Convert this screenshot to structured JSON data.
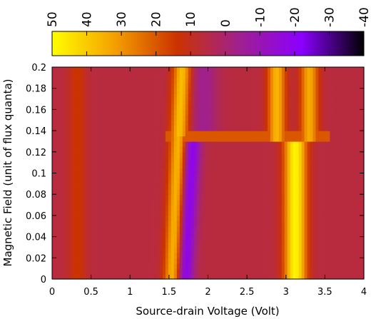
{
  "chart_data": {
    "type": "heatmap",
    "title": "",
    "xlabel": "Source-drain Voltage (Volt)",
    "ylabel": "Magnetic Field (unit of flux quanta)",
    "xlim": [
      0,
      4
    ],
    "ylim": [
      0,
      0.2
    ],
    "x_ticks": [
      "0",
      "0.5",
      "1",
      "1.5",
      "2",
      "2.5",
      "3",
      "3.5",
      "4"
    ],
    "y_ticks": [
      "0",
      "0.02",
      "0.04",
      "0.06",
      "0.08",
      "0.1",
      "0.12",
      "0.14",
      "0.16",
      "0.18",
      "0.2"
    ],
    "colorbar": {
      "range": [
        -40,
        50
      ],
      "placement": "top",
      "tick_labels": [
        "50",
        "40",
        "30",
        "20",
        "10",
        "0",
        "-10",
        "-20",
        "-30",
        "-40"
      ],
      "colors": [
        "#ffff00",
        "#f5a000",
        "#cc3300",
        "#a0208e",
        "#8b00ff",
        "#000000"
      ]
    },
    "background_value": 6,
    "features": [
      {
        "name": "peak-left-faint",
        "x_center": 0.32,
        "x_width": 0.08,
        "y_range": [
          0.0,
          0.2
        ],
        "value": 14
      },
      {
        "name": "peak-main-left",
        "x_center_at_ymin": 1.55,
        "x_center_at_ymax": 1.67,
        "x_width": 0.08,
        "y_range": [
          0.0,
          0.2
        ],
        "value": 38
      },
      {
        "name": "dip-main",
        "x_center_at_ymin": 1.7,
        "x_center_at_ymax": 1.8,
        "x_width": 0.08,
        "y_range": [
          0.0,
          0.135
        ],
        "value": -22
      },
      {
        "name": "dip-faint-upper",
        "x_center": 1.95,
        "x_width": 0.12,
        "y_range": [
          0.135,
          0.2
        ],
        "value": -4
      },
      {
        "name": "peak-right-lower",
        "x_center": 3.12,
        "x_width": 0.1,
        "y_range": [
          0.0,
          0.13
        ],
        "value": 48
      },
      {
        "name": "peak-right-upper-a",
        "x_center": 2.88,
        "x_width": 0.08,
        "y_range": [
          0.13,
          0.2
        ],
        "value": 36
      },
      {
        "name": "peak-right-upper-b",
        "x_center": 3.3,
        "x_width": 0.08,
        "y_range": [
          0.13,
          0.2
        ],
        "value": 34
      },
      {
        "name": "step-band",
        "x_range": [
          1.45,
          3.55
        ],
        "y_range": [
          0.13,
          0.14
        ],
        "value": 20
      }
    ]
  }
}
